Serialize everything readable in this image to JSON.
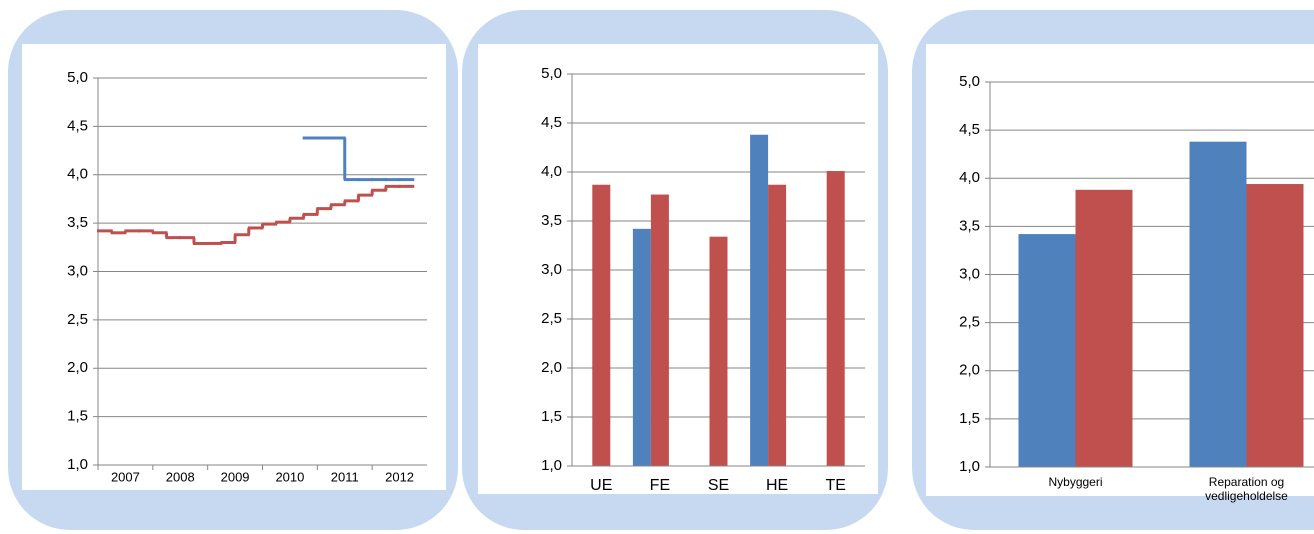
{
  "chart_data": [
    {
      "type": "step",
      "x": [
        2006.5,
        2006.75,
        2007,
        2007.25,
        2007.5,
        2007.75,
        2008,
        2008.25,
        2008.5,
        2008.75,
        2009,
        2009.25,
        2009.5,
        2009.75,
        2010,
        2010.25,
        2010.5,
        2010.75,
        2011,
        2011.25,
        2011.5,
        2011.75,
        2012
      ],
      "series": [
        {
          "color": "#4f81bd",
          "values": [
            null,
            null,
            null,
            null,
            null,
            null,
            null,
            null,
            null,
            null,
            null,
            null,
            null,
            null,
            null,
            4.38,
            4.38,
            4.38,
            3.95,
            3.95,
            3.95,
            3.95,
            3.95
          ]
        },
        {
          "color": "#c0504d",
          "values": [
            3.42,
            3.4,
            3.42,
            3.42,
            3.4,
            3.35,
            3.35,
            3.29,
            3.29,
            3.3,
            3.38,
            3.45,
            3.49,
            3.51,
            3.55,
            3.59,
            3.65,
            3.69,
            3.73,
            3.79,
            3.84,
            3.88,
            3.88
          ]
        }
      ],
      "step": 0.25,
      "xlim": [
        2006.5,
        2012.5
      ],
      "xticks": [
        2007,
        2008,
        2009,
        2010,
        2011,
        2012
      ],
      "ylim": [
        1,
        5
      ],
      "yticks": [
        {
          "value": 1,
          "label": "1,0"
        },
        {
          "value": 1.5,
          "label": "1,5"
        },
        {
          "value": 2,
          "label": "2,0"
        },
        {
          "value": 2.5,
          "label": "2,5"
        },
        {
          "value": 3,
          "label": "3,0"
        },
        {
          "value": 3.5,
          "label": "3,5"
        },
        {
          "value": 4,
          "label": "4,0"
        },
        {
          "value": 4.5,
          "label": "4,5"
        },
        {
          "value": 5,
          "label": "5,0"
        }
      ],
      "grid": true
    },
    {
      "type": "bar",
      "categories": [
        "UE",
        "FE",
        "SE",
        "HE",
        "TE"
      ],
      "series": [
        {
          "color": "#4f81bd",
          "values": [
            null,
            3.42,
            null,
            4.38,
            null
          ]
        },
        {
          "color": "#c0504d",
          "values": [
            3.87,
            3.77,
            3.34,
            3.87,
            4.01
          ]
        }
      ],
      "ylim": [
        1,
        5
      ],
      "yticks": [
        {
          "value": 1,
          "label": "1,0"
        },
        {
          "value": 1.5,
          "label": "1,5"
        },
        {
          "value": 2,
          "label": "2,0"
        },
        {
          "value": 2.5,
          "label": "2,5"
        },
        {
          "value": 3,
          "label": "3,0"
        },
        {
          "value": 3.5,
          "label": "3,5"
        },
        {
          "value": 4,
          "label": "4,0"
        },
        {
          "value": 4.5,
          "label": "4,5"
        },
        {
          "value": 5,
          "label": "5,0"
        }
      ],
      "grid": true
    },
    {
      "type": "bar",
      "categories": [
        "Nybyggeri",
        "Reparation og vedligeholdelse"
      ],
      "series": [
        {
          "color": "#4f81bd",
          "values": [
            3.42,
            4.38
          ]
        },
        {
          "color": "#c0504d",
          "values": [
            3.88,
            3.94
          ]
        }
      ],
      "ylim": [
        1,
        5
      ],
      "yticks": [
        {
          "value": 1,
          "label": "1,0"
        },
        {
          "value": 1.5,
          "label": "1,5"
        },
        {
          "value": 2,
          "label": "2,0"
        },
        {
          "value": 2.5,
          "label": "2,5"
        },
        {
          "value": 3,
          "label": "3,0"
        },
        {
          "value": 3.5,
          "label": "3,5"
        },
        {
          "value": 4,
          "label": "4,0"
        },
        {
          "value": 4.5,
          "label": "4,5"
        },
        {
          "value": 5,
          "label": "5,0"
        }
      ],
      "grid": true
    }
  ]
}
